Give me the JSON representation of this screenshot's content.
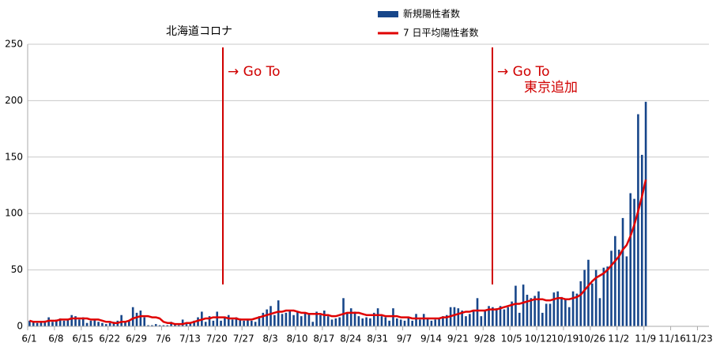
{
  "chart_data": {
    "type": "bar",
    "title": "北海道コロナ",
    "categories": [
      "6/1",
      null,
      null,
      null,
      null,
      null,
      null,
      "6/8",
      null,
      null,
      null,
      null,
      null,
      null,
      "6/15",
      null,
      null,
      null,
      null,
      null,
      null,
      "6/22",
      null,
      null,
      null,
      null,
      null,
      null,
      "6/29",
      null,
      null,
      null,
      null,
      null,
      null,
      "7/6",
      null,
      null,
      null,
      null,
      null,
      null,
      "7/13",
      null,
      null,
      null,
      null,
      null,
      null,
      "7/20",
      null,
      null,
      null,
      null,
      null,
      null,
      "7/27",
      null,
      null,
      null,
      null,
      null,
      null,
      "8/3",
      null,
      null,
      null,
      null,
      null,
      null,
      "8/10",
      null,
      null,
      null,
      null,
      null,
      null,
      "8/17",
      null,
      null,
      null,
      null,
      null,
      null,
      "8/24",
      null,
      null,
      null,
      null,
      null,
      null,
      "8/31",
      null,
      null,
      null,
      null,
      null,
      null,
      "9/7",
      null,
      null,
      null,
      null,
      null,
      null,
      "9/14",
      null,
      null,
      null,
      null,
      null,
      null,
      "9/21",
      null,
      null,
      null,
      null,
      null,
      null,
      "9/28",
      null,
      null,
      null,
      null,
      null,
      null,
      "10/5",
      null,
      null,
      null,
      null,
      null,
      null,
      "10/12",
      null,
      null,
      null,
      null,
      null,
      null,
      "10/19",
      null,
      null,
      null,
      null,
      null,
      null,
      "10/26",
      null,
      null,
      null,
      null,
      null,
      null,
      "11/2",
      null,
      null,
      null,
      null,
      null,
      null,
      "11/9",
      null,
      null,
      null,
      null,
      null,
      null,
      "11/16",
      null,
      null,
      null,
      null,
      null,
      null,
      "11/23",
      null,
      null
    ],
    "series": [
      {
        "name": "新規陽性者数",
        "type": "bar",
        "color": "#17468a",
        "values": [
          5,
          4,
          3,
          4,
          5,
          8,
          4,
          6,
          7,
          5,
          6,
          10,
          9,
          6,
          8,
          3,
          5,
          6,
          4,
          3,
          2,
          3,
          4,
          5,
          10,
          4,
          5,
          17,
          12,
          14,
          8,
          1,
          1,
          2,
          1,
          1,
          1,
          4,
          2,
          1,
          6,
          2,
          3,
          5,
          8,
          13,
          4,
          9,
          5,
          13,
          5,
          8,
          10,
          6,
          8,
          7,
          5,
          6,
          5,
          4,
          9,
          12,
          15,
          18,
          10,
          23,
          11,
          12,
          14,
          10,
          13,
          9,
          12,
          11,
          4,
          13,
          10,
          14,
          9,
          6,
          7,
          8,
          25,
          12,
          16,
          13,
          9,
          7,
          8,
          7,
          12,
          16,
          9,
          8,
          5,
          16,
          7,
          6,
          5,
          8,
          5,
          11,
          6,
          11,
          7,
          5,
          6,
          7,
          9,
          10,
          17,
          17,
          16,
          14,
          9,
          11,
          14,
          25,
          9,
          14,
          18,
          17,
          16,
          18,
          15,
          17,
          22,
          36,
          12,
          37,
          28,
          25,
          27,
          31,
          12,
          20,
          20,
          30,
          31,
          26,
          24,
          17,
          31,
          29,
          40,
          50,
          59,
          38,
          50,
          25,
          52,
          53,
          67,
          80,
          68,
          96,
          62,
          118,
          113,
          188,
          152,
          199,
          null,
          null,
          null,
          null,
          null,
          null,
          null,
          null,
          null,
          null,
          null,
          null,
          null,
          null,
          null,
          null
        ]
      },
      {
        "name": "7 日平均陽性者数",
        "type": "line",
        "color": "#e00000",
        "values": [
          5,
          4,
          4,
          4,
          4,
          5,
          5,
          5,
          6,
          6,
          6,
          7,
          7,
          7,
          7,
          7,
          6,
          6,
          6,
          5,
          4,
          4,
          3,
          3,
          4,
          4,
          5,
          7,
          8,
          9,
          9,
          9,
          8,
          8,
          7,
          4,
          3,
          3,
          2,
          2,
          2,
          3,
          3,
          4,
          5,
          6,
          7,
          7,
          8,
          8,
          8,
          8,
          7,
          7,
          7,
          6,
          6,
          6,
          6,
          7,
          8,
          9,
          10,
          11,
          12,
          13,
          13,
          14,
          14,
          14,
          13,
          12,
          12,
          11,
          11,
          11,
          11,
          10,
          10,
          9,
          9,
          10,
          11,
          12,
          12,
          12,
          12,
          11,
          10,
          10,
          10,
          10,
          10,
          9,
          9,
          9,
          9,
          8,
          8,
          8,
          7,
          7,
          7,
          7,
          7,
          7,
          7,
          7,
          8,
          8,
          9,
          10,
          11,
          12,
          13,
          13,
          14,
          14,
          14,
          14,
          15,
          15,
          15,
          16,
          17,
          18,
          19,
          20,
          20,
          21,
          22,
          23,
          24,
          24,
          24,
          23,
          23,
          24,
          25,
          25,
          24,
          24,
          25,
          26,
          28,
          32,
          36,
          40,
          43,
          45,
          47,
          50,
          54,
          58,
          62,
          68,
          72,
          80,
          90,
          102,
          115,
          130,
          null,
          null,
          null,
          null,
          null,
          null,
          null,
          null,
          null,
          null,
          null,
          null,
          null,
          null,
          null,
          null
        ]
      }
    ],
    "annotations": [
      {
        "lines": [
          "→  Go To"
        ]
      },
      {
        "lines": [
          "→  Go To",
          "東京追加"
        ]
      }
    ],
    "ylim": [
      0,
      250
    ],
    "yticks": [
      0,
      50,
      100,
      150,
      200,
      250
    ],
    "grid": true,
    "legend": "top"
  }
}
